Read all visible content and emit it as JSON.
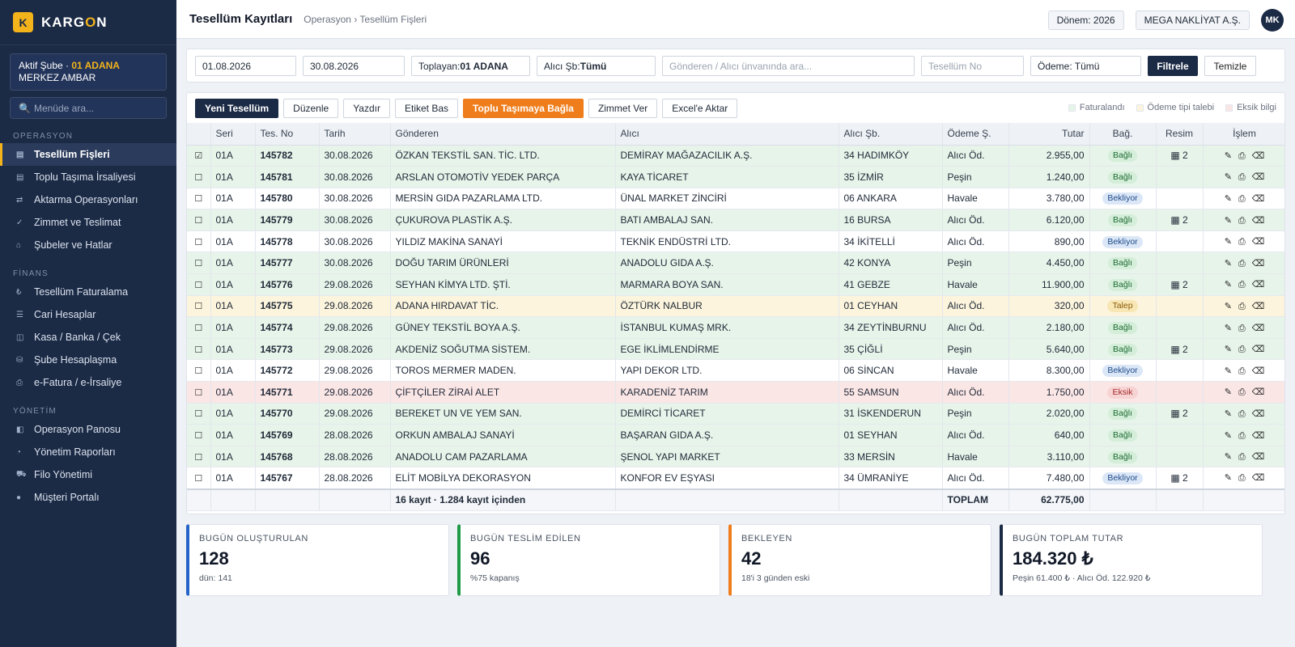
{
  "app": {
    "logo_letter": "K",
    "logo_a": "KARG",
    "logo_b": "O",
    "logo_c": "N"
  },
  "sidebar": {
    "branch_prefix": "Aktif Şube · ",
    "branch_code": "01 ADANA",
    "branch_suffix": " MERKEZ AMBAR",
    "search_placeholder": "Menüde ara...",
    "sections": [
      {
        "title": "OPERASYON",
        "items": [
          {
            "label": "Tesellüm Fişleri",
            "icon": "▤",
            "active": true
          },
          {
            "label": "Toplu Taşıma İrsaliyesi",
            "icon": "▤"
          },
          {
            "label": "Aktarma Operasyonları",
            "icon": "⇄"
          },
          {
            "label": "Zimmet ve Teslimat",
            "icon": "✓"
          },
          {
            "label": "Şubeler ve Hatlar",
            "icon": "⌂"
          }
        ]
      },
      {
        "title": "FİNANS",
        "items": [
          {
            "label": "Tesellüm Faturalama",
            "icon": "₺"
          },
          {
            "label": "Cari Hesaplar",
            "icon": "☰"
          },
          {
            "label": "Kasa / Banka / Çek",
            "icon": "◫"
          },
          {
            "label": "Şube Hesaplaşma",
            "icon": "⛁"
          },
          {
            "label": "e-Fatura / e-İrsaliye",
            "icon": "⎙"
          }
        ]
      },
      {
        "title": "YÖNETİM",
        "items": [
          {
            "label": "Operasyon Panosu",
            "icon": "◧"
          },
          {
            "label": "Yönetim Raporları",
            "icon": "◔"
          },
          {
            "label": "Filo Yönetimi",
            "icon": "⛟"
          },
          {
            "label": "Müşteri Portalı",
            "icon": "●"
          }
        ]
      }
    ]
  },
  "header": {
    "title": "Tesellüm Kayıtları",
    "breadcrumb": "Operasyon › Tesellüm Fişleri",
    "period": "Dönem: 2026",
    "company": "MEGA NAKLİYAT A.Ş.",
    "avatar": "MK"
  },
  "filters": {
    "date_from": "01.08.2026",
    "date_to": "30.08.2026",
    "collector_label": "Toplayan: ",
    "collector_value": "01 ADANA",
    "recv_branch_label": "Alıcı Şb: ",
    "recv_branch_value": "Tümü",
    "search_placeholder": "Gönderen / Alıcı ünvanında ara...",
    "receipt_placeholder": "Tesellüm No",
    "payment": "Ödeme: Tümü",
    "filter_button": "Filtrele",
    "clear_button": "Temizle"
  },
  "toolbar": {
    "new": "Yeni Tesellüm",
    "edit": "Düzenle",
    "print": "Yazdır",
    "label": "Etiket Bas",
    "link": "Toplu Taşımaya Bağla",
    "assign": "Zimmet Ver",
    "excel": "Excel'e Aktar"
  },
  "legend": [
    {
      "label": "Faturalandı",
      "color": "#e7f4ea"
    },
    {
      "label": "Ödeme tipi talebi",
      "color": "#fcf4dc"
    },
    {
      "label": "Eksik bilgi",
      "color": "#fbe6e6"
    }
  ],
  "table": {
    "columns": [
      "",
      "Seri",
      "Tes. No",
      "Tarih",
      "Gönderen",
      "Alıcı",
      "Alıcı Şb.",
      "Ödeme Ş.",
      "Tutar",
      "Bağ.",
      "Resim",
      "İşlem"
    ],
    "rows": [
      {
        "checked": true,
        "seri": "01A",
        "no": "145782",
        "date": "30.08.2026",
        "sender": "ÖZKAN TEKSTİL SAN. TİC. LTD.",
        "receiver": "DEMİRAY MAĞAZACILIK A.Ş.",
        "branch": "34 HADIMKÖY",
        "payment": "Alıcı Öd.",
        "amount": "2.955,00",
        "status": "Bağlı",
        "image": "2",
        "state": "faturalandi"
      },
      {
        "checked": false,
        "seri": "01A",
        "no": "145781",
        "date": "30.08.2026",
        "sender": "ARSLAN OTOMOTİV YEDEK PARÇA",
        "receiver": "KAYA TİCARET",
        "branch": "35 İZMİR",
        "payment": "Peşin",
        "amount": "1.240,00",
        "status": "Bağlı",
        "image": "",
        "state": "faturalandi"
      },
      {
        "checked": false,
        "seri": "01A",
        "no": "145780",
        "date": "30.08.2026",
        "sender": "MERSİN GIDA PAZARLAMA LTD.",
        "receiver": "ÜNAL MARKET ZİNCİRİ",
        "branch": "06 ANKARA",
        "payment": "Havale",
        "amount": "3.780,00",
        "status": "Bekliyor",
        "image": "",
        "state": "normal"
      },
      {
        "checked": false,
        "seri": "01A",
        "no": "145779",
        "date": "30.08.2026",
        "sender": "ÇUKUROVA PLASTİK A.Ş.",
        "receiver": "BATI AMBALAJ SAN.",
        "branch": "16 BURSA",
        "payment": "Alıcı Öd.",
        "amount": "6.120,00",
        "status": "Bağlı",
        "image": "2",
        "state": "faturalandi"
      },
      {
        "checked": false,
        "seri": "01A",
        "no": "145778",
        "date": "30.08.2026",
        "sender": "YILDIZ MAKİNA SANAYİ",
        "receiver": "TEKNİK ENDÜSTRİ LTD.",
        "branch": "34 İKİTELLİ",
        "payment": "Alıcı Öd.",
        "amount": "890,00",
        "status": "Bekliyor",
        "image": "",
        "state": "normal"
      },
      {
        "checked": false,
        "seri": "01A",
        "no": "145777",
        "date": "30.08.2026",
        "sender": "DOĞU TARIM ÜRÜNLERİ",
        "receiver": "ANADOLU GIDA A.Ş.",
        "branch": "42 KONYA",
        "payment": "Peşin",
        "amount": "4.450,00",
        "status": "Bağlı",
        "image": "",
        "state": "faturalandi"
      },
      {
        "checked": false,
        "seri": "01A",
        "no": "145776",
        "date": "29.08.2026",
        "sender": "SEYHAN KİMYA LTD. ŞTİ.",
        "receiver": "MARMARA BOYA SAN.",
        "branch": "41 GEBZE",
        "payment": "Havale",
        "amount": "11.900,00",
        "status": "Bağlı",
        "image": "2",
        "state": "faturalandi"
      },
      {
        "checked": false,
        "seri": "01A",
        "no": "145775",
        "date": "29.08.2026",
        "sender": "ADANA HIRDAVAT TİC.",
        "receiver": "ÖZTÜRK NALBUR",
        "branch": "01 CEYHAN",
        "payment": "Alıcı Öd.",
        "amount": "320,00",
        "status": "Talep",
        "image": "",
        "state": "odeme"
      },
      {
        "checked": false,
        "seri": "01A",
        "no": "145774",
        "date": "29.08.2026",
        "sender": "GÜNEY TEKSTİL BOYA A.Ş.",
        "receiver": "İSTANBUL KUMAŞ MRK.",
        "branch": "34 ZEYTİNBURNU",
        "payment": "Alıcı Öd.",
        "amount": "2.180,00",
        "status": "Bağlı",
        "image": "",
        "state": "faturalandi"
      },
      {
        "checked": false,
        "seri": "01A",
        "no": "145773",
        "date": "29.08.2026",
        "sender": "AKDENİZ SOĞUTMA SİSTEM.",
        "receiver": "EGE İKLİMLENDİRME",
        "branch": "35 ÇİĞLİ",
        "payment": "Peşin",
        "amount": "5.640,00",
        "status": "Bağlı",
        "image": "2",
        "state": "faturalandi"
      },
      {
        "checked": false,
        "seri": "01A",
        "no": "145772",
        "date": "29.08.2026",
        "sender": "TOROS MERMER MADEN.",
        "receiver": "YAPI DEKOR LTD.",
        "branch": "06 SİNCAN",
        "payment": "Havale",
        "amount": "8.300,00",
        "status": "Bekliyor",
        "image": "",
        "state": "normal"
      },
      {
        "checked": false,
        "seri": "01A",
        "no": "145771",
        "date": "29.08.2026",
        "sender": "ÇİFTÇİLER ZİRAİ ALET",
        "receiver": "KARADENİZ TARIM",
        "branch": "55 SAMSUN",
        "payment": "Alıcı Öd.",
        "amount": "1.750,00",
        "status": "Eksik",
        "image": "",
        "state": "eksik"
      },
      {
        "checked": false,
        "seri": "01A",
        "no": "145770",
        "date": "29.08.2026",
        "sender": "BEREKET UN VE YEM SAN.",
        "receiver": "DEMİRCİ TİCARET",
        "branch": "31 İSKENDERUN",
        "payment": "Peşin",
        "amount": "2.020,00",
        "status": "Bağlı",
        "image": "2",
        "state": "faturalandi"
      },
      {
        "checked": false,
        "seri": "01A",
        "no": "145769",
        "date": "28.08.2026",
        "sender": "ORKUN AMBALAJ SANAYİ",
        "receiver": "BAŞARAN GIDA A.Ş.",
        "branch": "01 SEYHAN",
        "payment": "Alıcı Öd.",
        "amount": "640,00",
        "status": "Bağlı",
        "image": "",
        "state": "faturalandi"
      },
      {
        "checked": false,
        "seri": "01A",
        "no": "145768",
        "date": "28.08.2026",
        "sender": "ANADOLU CAM PAZARLAMA",
        "receiver": "ŞENOL YAPI MARKET",
        "branch": "33 MERSİN",
        "payment": "Havale",
        "amount": "3.110,00",
        "status": "Bağlı",
        "image": "",
        "state": "faturalandi"
      },
      {
        "checked": false,
        "seri": "01A",
        "no": "145767",
        "date": "28.08.2026",
        "sender": "ELİT MOBİLYA DEKORASYON",
        "receiver": "KONFOR EV EŞYASI",
        "branch": "34 ÜMRANİYE",
        "payment": "Alıcı Öd.",
        "amount": "7.480,00",
        "status": "Bekliyor",
        "image": "2",
        "state": "normal"
      }
    ],
    "footer_count": "16 kayıt · 1.284 kayıt içinden",
    "footer_total_label": "TOPLAM",
    "footer_total": "62.775,00"
  },
  "cards": [
    {
      "label": "BUGÜN OLUŞTURULAN",
      "value": "128",
      "sub": "dün: 141",
      "color": "#2563c9"
    },
    {
      "label": "BUGÜN TESLİM EDİLEN",
      "value": "96",
      "sub": "%75 kapanış",
      "color": "#1e9a45"
    },
    {
      "label": "BEKLEYEN",
      "value": "42",
      "sub": "18'i 3 günden eski",
      "color": "#ef7d1b"
    },
    {
      "label": "BUGÜN TOPLAM TUTAR",
      "value": "184.320 ₺",
      "sub": "Peşin 61.400 ₺ · Alıcı Öd. 122.920 ₺",
      "color": "#1b2a45"
    }
  ]
}
